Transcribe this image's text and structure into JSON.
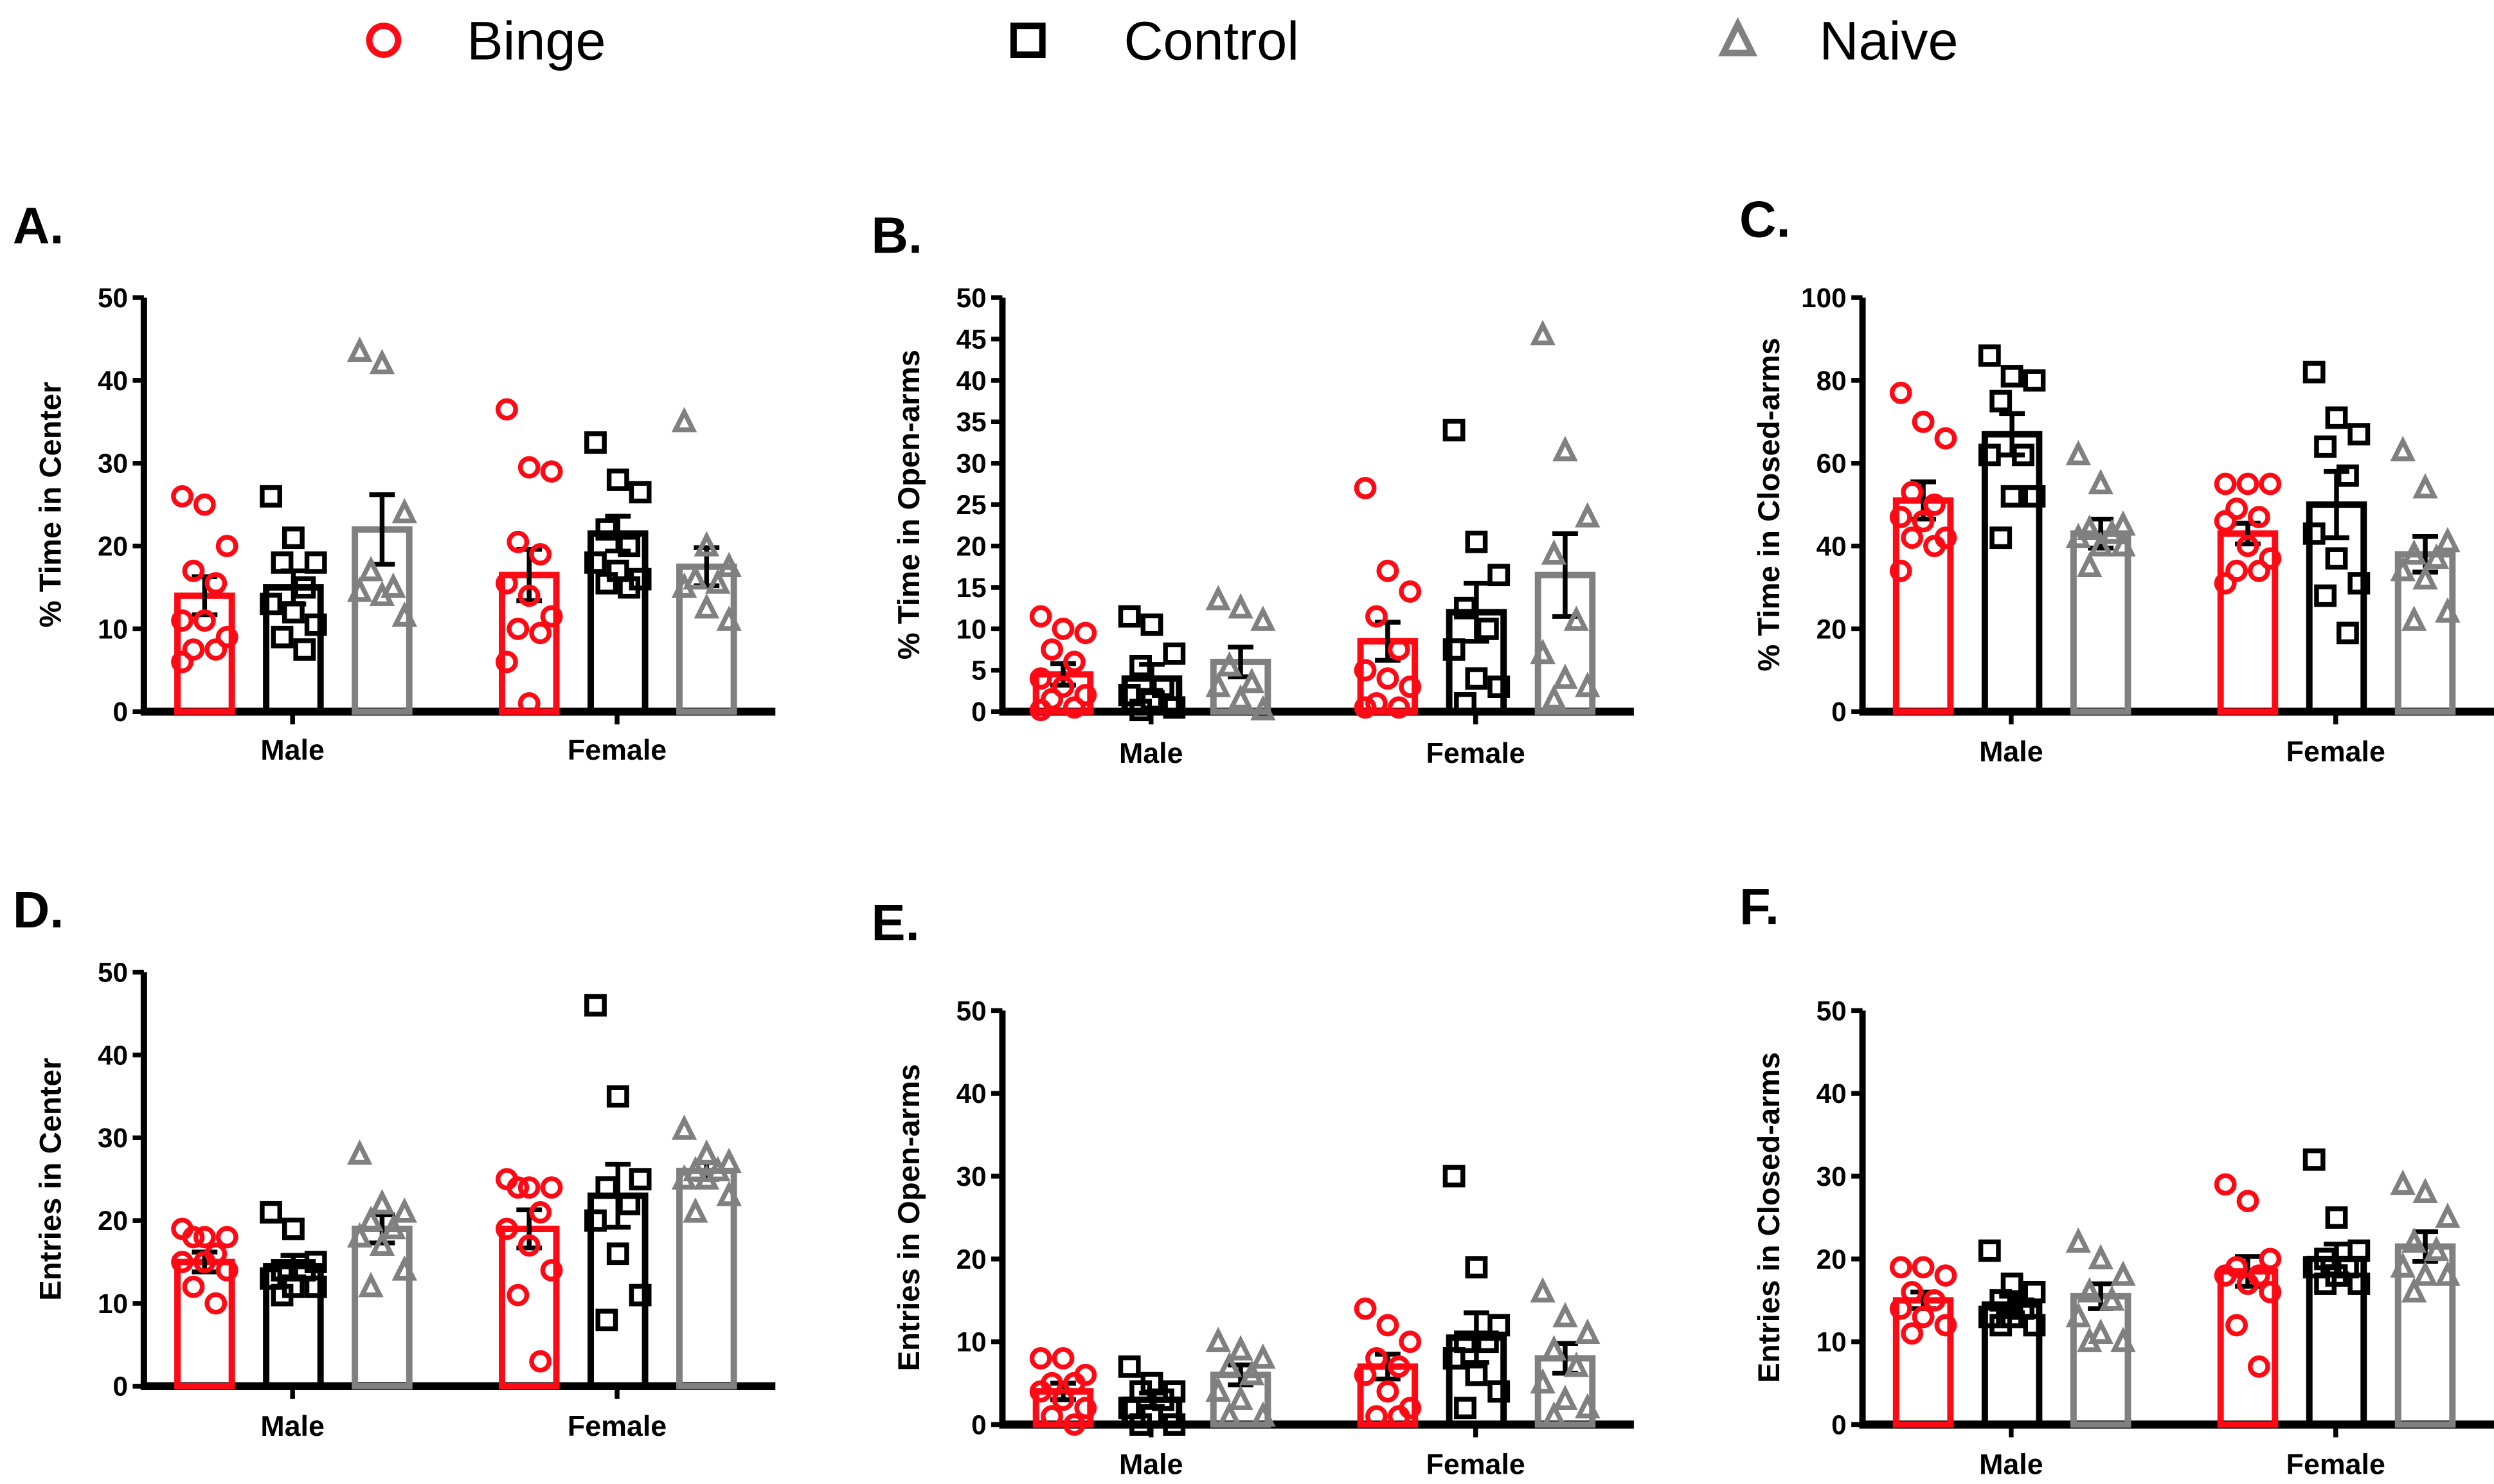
{
  "legend": [
    {
      "name": "Binge",
      "color": "#ff0a14",
      "shape": "circle"
    },
    {
      "name": "Control",
      "color": "#000000",
      "shape": "square"
    },
    {
      "name": "Naive",
      "color": "#808080",
      "shape": "triangle"
    }
  ],
  "chart_data": [
    {
      "panel": "A.",
      "type": "bar",
      "ylabel": "% Time in Center",
      "ylim": [
        0,
        50
      ],
      "yticks": [
        0,
        10,
        20,
        30,
        40,
        50
      ],
      "categories": [
        "Male",
        "Female"
      ],
      "series": [
        {
          "name": "Binge",
          "means": [
            14,
            16.5
          ],
          "sem": [
            2.3,
            3.1
          ],
          "points": [
            [
              26,
              25,
              20,
              17,
              15.5,
              11,
              11,
              9,
              7.5,
              7.5,
              6
            ],
            [
              36.5,
              29.5,
              29,
              20.5,
              19,
              15.5,
              14,
              11.5,
              10,
              9.5,
              6,
              1
            ]
          ]
        },
        {
          "name": "Control",
          "means": [
            15,
            21.5
          ],
          "sem": [
            2,
            2.1
          ],
          "points": [
            [
              26,
              21,
              18,
              18,
              15,
              13,
              12,
              10.5,
              9,
              7.5
            ],
            [
              32.5,
              28,
              26.5,
              22,
              20,
              18,
              17,
              16,
              15.5,
              15
            ]
          ]
        },
        {
          "name": "Naive",
          "means": [
            22,
            17.5
          ],
          "sem": [
            4.2,
            2.3
          ],
          "points": [
            [
              43.5,
              42,
              24,
              17,
              15,
              14.5,
              14,
              11.5
            ],
            [
              35,
              20,
              17.5,
              16,
              15.5,
              15,
              12.5,
              11
            ]
          ]
        }
      ]
    },
    {
      "panel": "B.",
      "type": "bar",
      "ylabel": "% Time in Open-arms",
      "ylim": [
        0,
        50
      ],
      "yticks": [
        0,
        5,
        10,
        15,
        20,
        25,
        30,
        35,
        40,
        45,
        50
      ],
      "categories": [
        "Male",
        "Female"
      ],
      "series": [
        {
          "name": "Binge",
          "means": [
            4.5,
            8.5
          ],
          "sem": [
            1.3,
            2.3
          ],
          "points": [
            [
              11.5,
              10,
              9.5,
              7.5,
              6,
              4,
              3,
              2,
              1.5,
              0.5,
              0.2
            ],
            [
              27,
              17,
              14.5,
              11.5,
              7.5,
              5,
              4,
              3,
              1,
              0.5,
              0.5
            ]
          ]
        },
        {
          "name": "Control",
          "means": [
            4,
            12
          ],
          "sem": [
            1.7,
            3.5
          ],
          "points": [
            [
              11.5,
              10.5,
              7,
              5.5,
              3,
              2,
              1.5,
              0.5,
              0.2
            ],
            [
              34,
              20.5,
              16.5,
              12.5,
              10,
              7.5,
              4,
              3,
              1
            ]
          ]
        },
        {
          "name": "Naive",
          "means": [
            6,
            16.5
          ],
          "sem": [
            1.8,
            5
          ],
          "points": [
            [
              13.5,
              12.5,
              11,
              5.5,
              3.5,
              3,
              1.5,
              0.2
            ],
            [
              45.5,
              31.5,
              23.5,
              19,
              11,
              7,
              4,
              3,
              1.5
            ]
          ]
        }
      ]
    },
    {
      "panel": "C.",
      "type": "bar",
      "ylabel": "% Time in Closed-arms",
      "ylim": [
        0,
        100
      ],
      "yticks": [
        0,
        20,
        40,
        60,
        80,
        100
      ],
      "categories": [
        "Male",
        "Female"
      ],
      "series": [
        {
          "name": "Binge",
          "means": [
            51,
            43
          ],
          "sem": [
            4.5,
            2.5
          ],
          "points": [
            [
              77,
              70,
              66,
              53,
              50,
              47,
              46,
              42,
              42,
              40,
              34
            ],
            [
              55,
              55,
              55,
              49,
              47,
              46,
              40,
              37,
              34,
              34,
              31
            ]
          ]
        },
        {
          "name": "Control",
          "means": [
            67,
            50
          ],
          "sem": [
            5,
            8
          ],
          "points": [
            [
              86,
              81,
              80,
              75,
              62,
              62,
              52,
              52,
              42
            ],
            [
              82,
              71,
              67,
              64,
              57,
              43,
              37,
              31,
              28,
              19
            ]
          ]
        },
        {
          "name": "Naive",
          "means": [
            43,
            38
          ],
          "sem": [
            3.5,
            4.3
          ],
          "points": [
            [
              62,
              55,
              45,
              44,
              43,
              42,
              40,
              40,
              35
            ],
            [
              63,
              54,
              41,
              38,
              37,
              34,
              32,
              24,
              22
            ]
          ]
        }
      ]
    },
    {
      "panel": "D.",
      "type": "bar",
      "ylabel": "Entries in Center",
      "ylim": [
        0,
        50
      ],
      "yticks": [
        0,
        10,
        20,
        30,
        40,
        50
      ],
      "categories": [
        "Male",
        "Female"
      ],
      "series": [
        {
          "name": "Binge",
          "means": [
            15,
            19
          ],
          "sem": [
            1.2,
            2.3
          ],
          "points": [
            [
              19,
              18,
              18,
              18,
              16,
              15,
              15,
              14,
              12,
              10
            ],
            [
              25,
              24,
              24,
              24,
              21,
              19,
              17,
              14,
              11,
              3
            ]
          ]
        },
        {
          "name": "Control",
          "means": [
            14.5,
            23
          ],
          "sem": [
            1.3,
            3.8
          ],
          "points": [
            [
              21,
              19,
              15,
              14,
              14,
              13,
              12,
              12,
              11
            ],
            [
              46,
              35,
              25,
              24,
              22,
              20,
              16,
              11,
              8
            ]
          ]
        },
        {
          "name": "Naive",
          "means": [
            19,
            26
          ],
          "sem": [
            1.7,
            1
          ],
          "points": [
            [
              28,
              22,
              21,
              20,
              19,
              18,
              17,
              14,
              12
            ],
            [
              31,
              28,
              27,
              26,
              26,
              25,
              25,
              23,
              21
            ]
          ]
        }
      ]
    },
    {
      "panel": "E.",
      "type": "bar",
      "ylabel": "Entries in Open-arms",
      "ylim": [
        0,
        50
      ],
      "yticks": [
        0,
        10,
        20,
        30,
        40,
        50
      ],
      "categories": [
        "Male",
        "Female"
      ],
      "series": [
        {
          "name": "Binge",
          "means": [
            4,
            7
          ],
          "sem": [
            1,
            1.5
          ],
          "points": [
            [
              8,
              8,
              6,
              5,
              5,
              4,
              3,
              2,
              1,
              0
            ],
            [
              14,
              12,
              10,
              8,
              7,
              6,
              4,
              2,
              1,
              1
            ]
          ]
        },
        {
          "name": "Control",
          "means": [
            3,
            10.5
          ],
          "sem": [
            0.8,
            3
          ],
          "points": [
            [
              7,
              5,
              4,
              4,
              3,
              2,
              1,
              0,
              0
            ],
            [
              30,
              19,
              12,
              10,
              10,
              8,
              6,
              4,
              2
            ]
          ]
        },
        {
          "name": "Naive",
          "means": [
            6,
            8
          ],
          "sem": [
            1.2,
            1.8
          ],
          "points": [
            [
              10,
              9,
              8,
              7,
              6,
              4,
              3,
              1,
              1
            ],
            [
              16,
              13,
              11,
              9,
              7,
              5,
              3,
              2,
              1
            ]
          ]
        }
      ]
    },
    {
      "panel": "F.",
      "type": "bar",
      "ylabel": "Entries in Closed-arms",
      "ylim": [
        0,
        50
      ],
      "yticks": [
        0,
        10,
        20,
        30,
        40,
        50
      ],
      "categories": [
        "Male",
        "Female"
      ],
      "series": [
        {
          "name": "Binge",
          "means": [
            15,
            18.5
          ],
          "sem": [
            1,
            1.8
          ],
          "points": [
            [
              19,
              19,
              18,
              16,
              15,
              14,
              13,
              12,
              11
            ],
            [
              29,
              27,
              20,
              19,
              18,
              18,
              17,
              16,
              12,
              7
            ]
          ]
        },
        {
          "name": "Control",
          "means": [
            14.5,
            20
          ],
          "sem": [
            1,
            1.8
          ],
          "points": [
            [
              21,
              17,
              16,
              15,
              14,
              13,
              13,
              12,
              12
            ],
            [
              32,
              25,
              21,
              20,
              19,
              19,
              18,
              17,
              17
            ]
          ]
        },
        {
          "name": "Naive",
          "means": [
            15.5,
            21.5
          ],
          "sem": [
            1.5,
            1.8
          ],
          "points": [
            [
              22,
              20,
              18,
              16,
              15,
              13,
              11,
              10,
              10
            ],
            [
              29,
              28,
              25,
              22,
              21,
              19,
              18,
              18,
              16
            ]
          ]
        }
      ]
    }
  ]
}
